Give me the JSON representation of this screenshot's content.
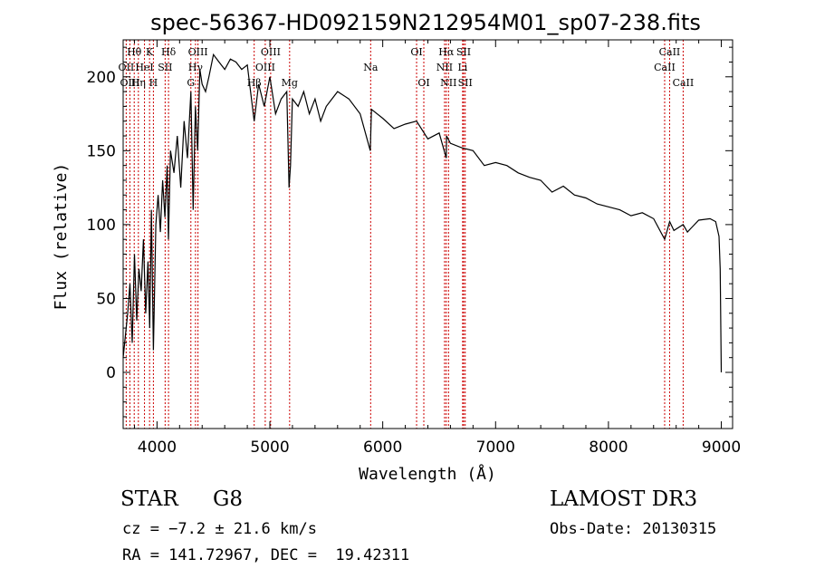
{
  "chart_data": {
    "type": "line",
    "title": "spec-56367-HD092159N212954M01_sp07-238.fits",
    "xlabel": "Wavelength (Å)",
    "ylabel": "Flux (relative)",
    "xlim": [
      3700,
      9100
    ],
    "ylim": [
      -38,
      225
    ],
    "xticks": [
      4000,
      5000,
      6000,
      7000,
      8000,
      9000
    ],
    "yticks": [
      0,
      50,
      100,
      150,
      200
    ],
    "xtick_labels": [
      "4000",
      "5000",
      "6000",
      "7000",
      "8000",
      "9000"
    ],
    "ytick_labels": [
      "0",
      "50",
      "100",
      "150",
      "200"
    ],
    "grid": false,
    "series": [
      {
        "name": "spectrum",
        "color": "#000000",
        "x": [
          3700,
          3720,
          3740,
          3760,
          3780,
          3800,
          3820,
          3840,
          3860,
          3880,
          3900,
          3920,
          3935,
          3950,
          3968,
          3990,
          4010,
          4030,
          4050,
          4070,
          4090,
          4101,
          4120,
          4150,
          4180,
          4210,
          4240,
          4270,
          4300,
          4320,
          4340,
          4360,
          4380,
          4400,
          4430,
          4460,
          4500,
          4550,
          4600,
          4650,
          4700,
          4750,
          4800,
          4861,
          4900,
          4950,
          5000,
          5050,
          5100,
          5150,
          5170,
          5183,
          5200,
          5250,
          5300,
          5350,
          5400,
          5450,
          5500,
          5600,
          5700,
          5800,
          5890,
          5900,
          6000,
          6100,
          6200,
          6300,
          6400,
          6500,
          6563,
          6565,
          6600,
          6700,
          6800,
          6900,
          7000,
          7100,
          7200,
          7300,
          7400,
          7500,
          7600,
          7700,
          7800,
          7900,
          8000,
          8100,
          8200,
          8300,
          8400,
          8498,
          8542,
          8580,
          8662,
          8700,
          8800,
          8900,
          8950,
          8980,
          8990,
          9000
        ],
        "y": [
          10,
          25,
          40,
          60,
          20,
          80,
          35,
          70,
          55,
          90,
          40,
          75,
          30,
          110,
          15,
          100,
          120,
          95,
          130,
          105,
          140,
          90,
          150,
          135,
          160,
          125,
          170,
          145,
          190,
          110,
          180,
          150,
          205,
          195,
          190,
          200,
          215,
          210,
          205,
          212,
          210,
          205,
          208,
          170,
          195,
          180,
          200,
          175,
          185,
          190,
          125,
          140,
          185,
          180,
          190,
          175,
          185,
          170,
          180,
          190,
          185,
          175,
          150,
          178,
          172,
          165,
          168,
          170,
          158,
          162,
          145,
          160,
          155,
          152,
          150,
          140,
          142,
          140,
          135,
          132,
          130,
          122,
          126,
          120,
          118,
          114,
          112,
          110,
          106,
          108,
          104,
          90,
          102,
          96,
          100,
          95,
          103,
          104,
          102,
          92,
          70,
          0
        ]
      }
    ],
    "line_labels": [
      {
        "label": "Hθ",
        "x": 3798,
        "row": 1
      },
      {
        "label": "OII",
        "x": 3727,
        "row": 2
      },
      {
        "label": "OIII",
        "x": 3760,
        "row": 3
      },
      {
        "label": "K",
        "x": 3934,
        "row": 1
      },
      {
        "label": "HeI",
        "x": 3889,
        "row": 2
      },
      {
        "label": "Hη",
        "x": 3835,
        "row": 3
      },
      {
        "label": "H",
        "x": 3968,
        "row": 3
      },
      {
        "label": "SII",
        "x": 4072,
        "row": 2
      },
      {
        "label": "Hδ",
        "x": 4102,
        "row": 1
      },
      {
        "label": "OIII",
        "x": 4363,
        "row": 1
      },
      {
        "label": "Hγ",
        "x": 4341,
        "row": 2
      },
      {
        "label": "G",
        "x": 4300,
        "row": 3
      },
      {
        "label": "OIII",
        "x": 5007,
        "row": 1
      },
      {
        "label": "OIII",
        "x": 4959,
        "row": 2
      },
      {
        "label": "Hβ",
        "x": 4861,
        "row": 3
      },
      {
        "label": "Mg",
        "x": 5175,
        "row": 3
      },
      {
        "label": "Na",
        "x": 5893,
        "row": 2
      },
      {
        "label": "OI",
        "x": 6300,
        "row": 1
      },
      {
        "label": "OI",
        "x": 6364,
        "row": 3
      },
      {
        "label": "Hα",
        "x": 6563,
        "row": 1
      },
      {
        "label": "SII",
        "x": 6717,
        "row": 1
      },
      {
        "label": "NII",
        "x": 6548,
        "row": 2
      },
      {
        "label": "Li",
        "x": 6708,
        "row": 2
      },
      {
        "label": "NII",
        "x": 6583,
        "row": 3
      },
      {
        "label": "SII",
        "x": 6731,
        "row": 3
      },
      {
        "label": "CaII",
        "x": 8542,
        "row": 1
      },
      {
        "label": "CaII",
        "x": 8498,
        "row": 2
      },
      {
        "label": "CaII",
        "x": 8662,
        "row": 3
      }
    ],
    "marker_color": "#cc0000"
  },
  "info": {
    "object_class": "STAR",
    "subclass": "G8",
    "redshift": "cz = −7.2 ± 21.6 km/s",
    "coords": "RA = 141.72967, DEC =  19.42311",
    "survey": "LAMOST DR3",
    "obs_date": "Obs-Date: 20130315"
  }
}
